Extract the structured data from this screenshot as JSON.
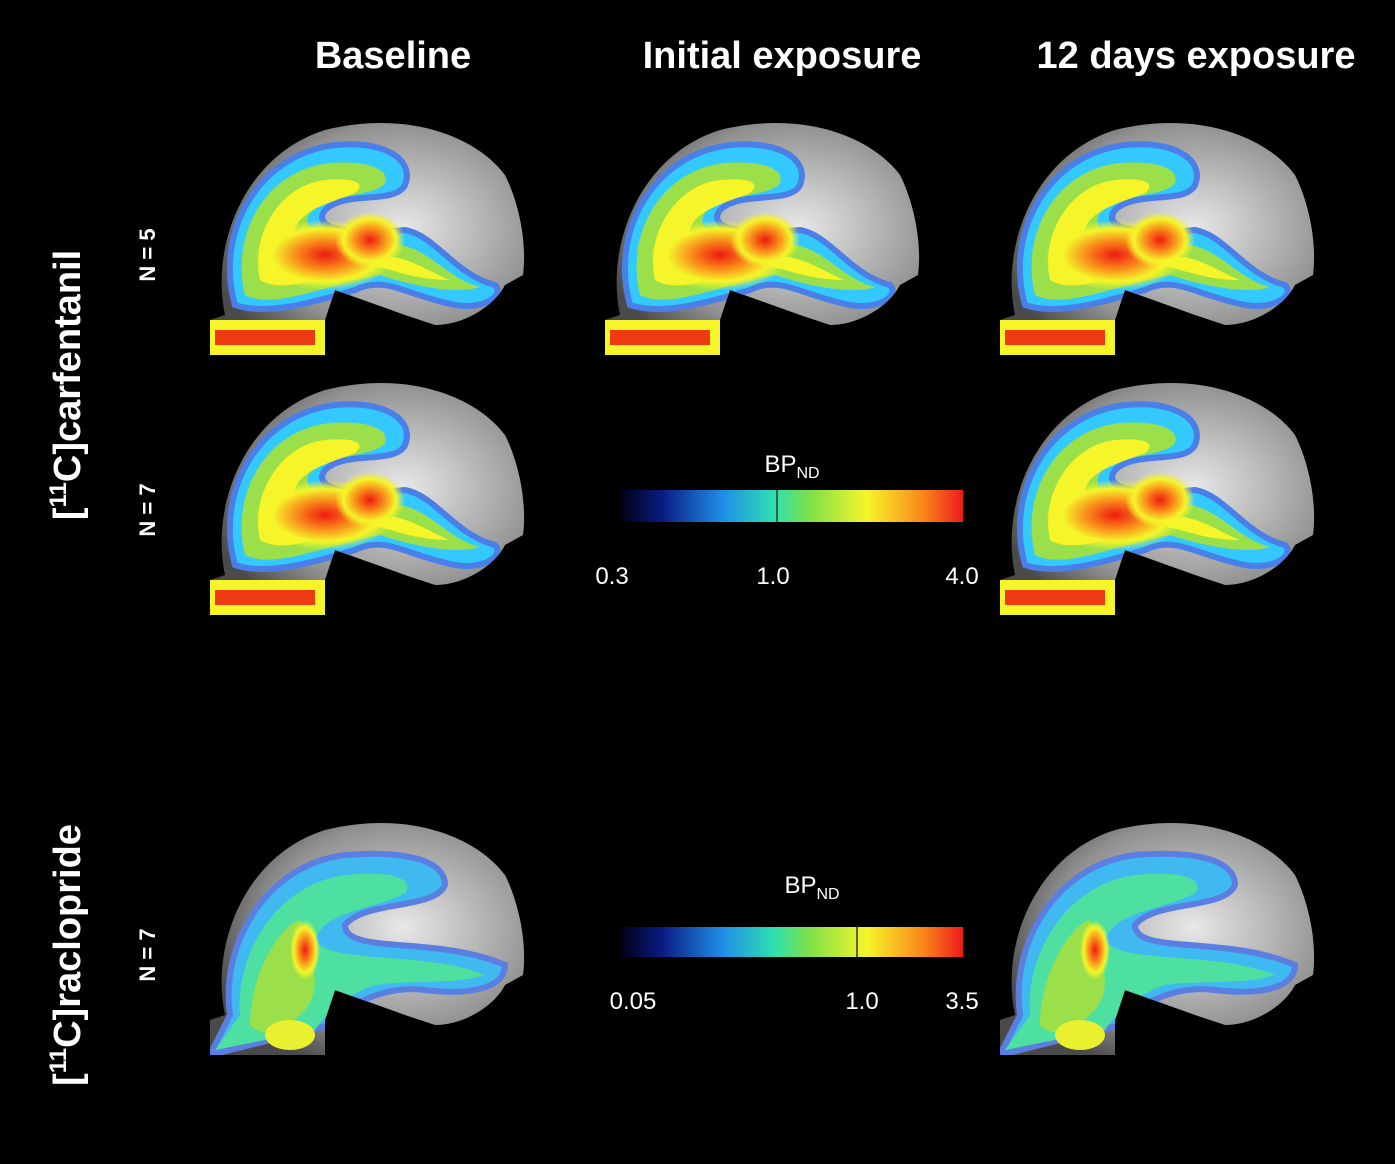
{
  "columns": [
    "Baseline",
    "Initial exposure",
    "12 days exposure"
  ],
  "tracers": [
    {
      "prefix": "[",
      "sup": "11",
      "suffix": "C]carfentanil"
    },
    {
      "prefix": "[",
      "sup": "11",
      "suffix": "C]raclopride"
    }
  ],
  "n_labels": [
    "N = 5",
    "N = 7",
    "N = 7"
  ],
  "colorbars": [
    {
      "title": "BP",
      "subscript": "ND",
      "ticks": [
        "0.3",
        "1.0",
        "4.0"
      ]
    },
    {
      "title": "BP",
      "subscript": "ND",
      "ticks": [
        "0.05",
        "1.0",
        "3.5"
      ]
    }
  ]
}
